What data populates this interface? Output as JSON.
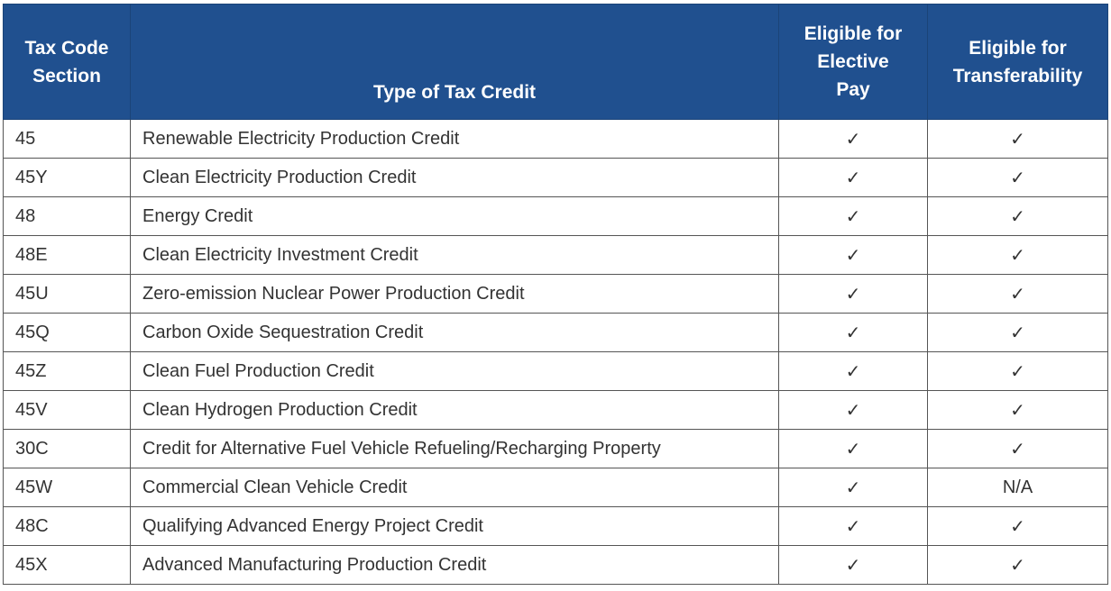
{
  "table": {
    "headers": [
      [
        "Tax Code",
        "Section"
      ],
      [
        "Type of Tax Credit"
      ],
      [
        "Eligible for",
        "Elective",
        "Pay"
      ],
      [
        "Eligible for",
        "Transferability"
      ]
    ],
    "rows": [
      {
        "code": "45",
        "type": "Renewable Electricity Production Credit",
        "elective": "✓",
        "transfer": "✓"
      },
      {
        "code": "45Y",
        "type": "Clean Electricity Production Credit",
        "elective": "✓",
        "transfer": "✓"
      },
      {
        "code": "48",
        "type": "Energy Credit",
        "elective": "✓",
        "transfer": "✓"
      },
      {
        "code": "48E",
        "type": "Clean Electricity Investment Credit",
        "elective": "✓",
        "transfer": "✓"
      },
      {
        "code": "45U",
        "type": "Zero-emission Nuclear Power Production Credit",
        "elective": "✓",
        "transfer": "✓"
      },
      {
        "code": "45Q",
        "type": "Carbon Oxide Sequestration Credit",
        "elective": "✓",
        "transfer": "✓"
      },
      {
        "code": "45Z",
        "type": "Clean Fuel Production Credit",
        "elective": "✓",
        "transfer": "✓"
      },
      {
        "code": "45V",
        "type": "Clean Hydrogen Production Credit",
        "elective": "✓",
        "transfer": "✓"
      },
      {
        "code": "30C",
        "type": "Credit for Alternative Fuel Vehicle Refueling/Recharging Property",
        "elective": "✓",
        "transfer": "✓"
      },
      {
        "code": "45W",
        "type": "Commercial Clean Vehicle Credit",
        "elective": "✓",
        "transfer": "N/A"
      },
      {
        "code": "48C",
        "type": "Qualifying Advanced Energy Project Credit",
        "elective": "✓",
        "transfer": "✓"
      },
      {
        "code": "45X",
        "type": "Advanced Manufacturing Production Credit",
        "elective": "✓",
        "transfer": "✓"
      }
    ]
  },
  "colors": {
    "header_background": "#20508f",
    "header_text": "#ffffff",
    "cell_text": "#333333",
    "grid_line": "#555555"
  }
}
